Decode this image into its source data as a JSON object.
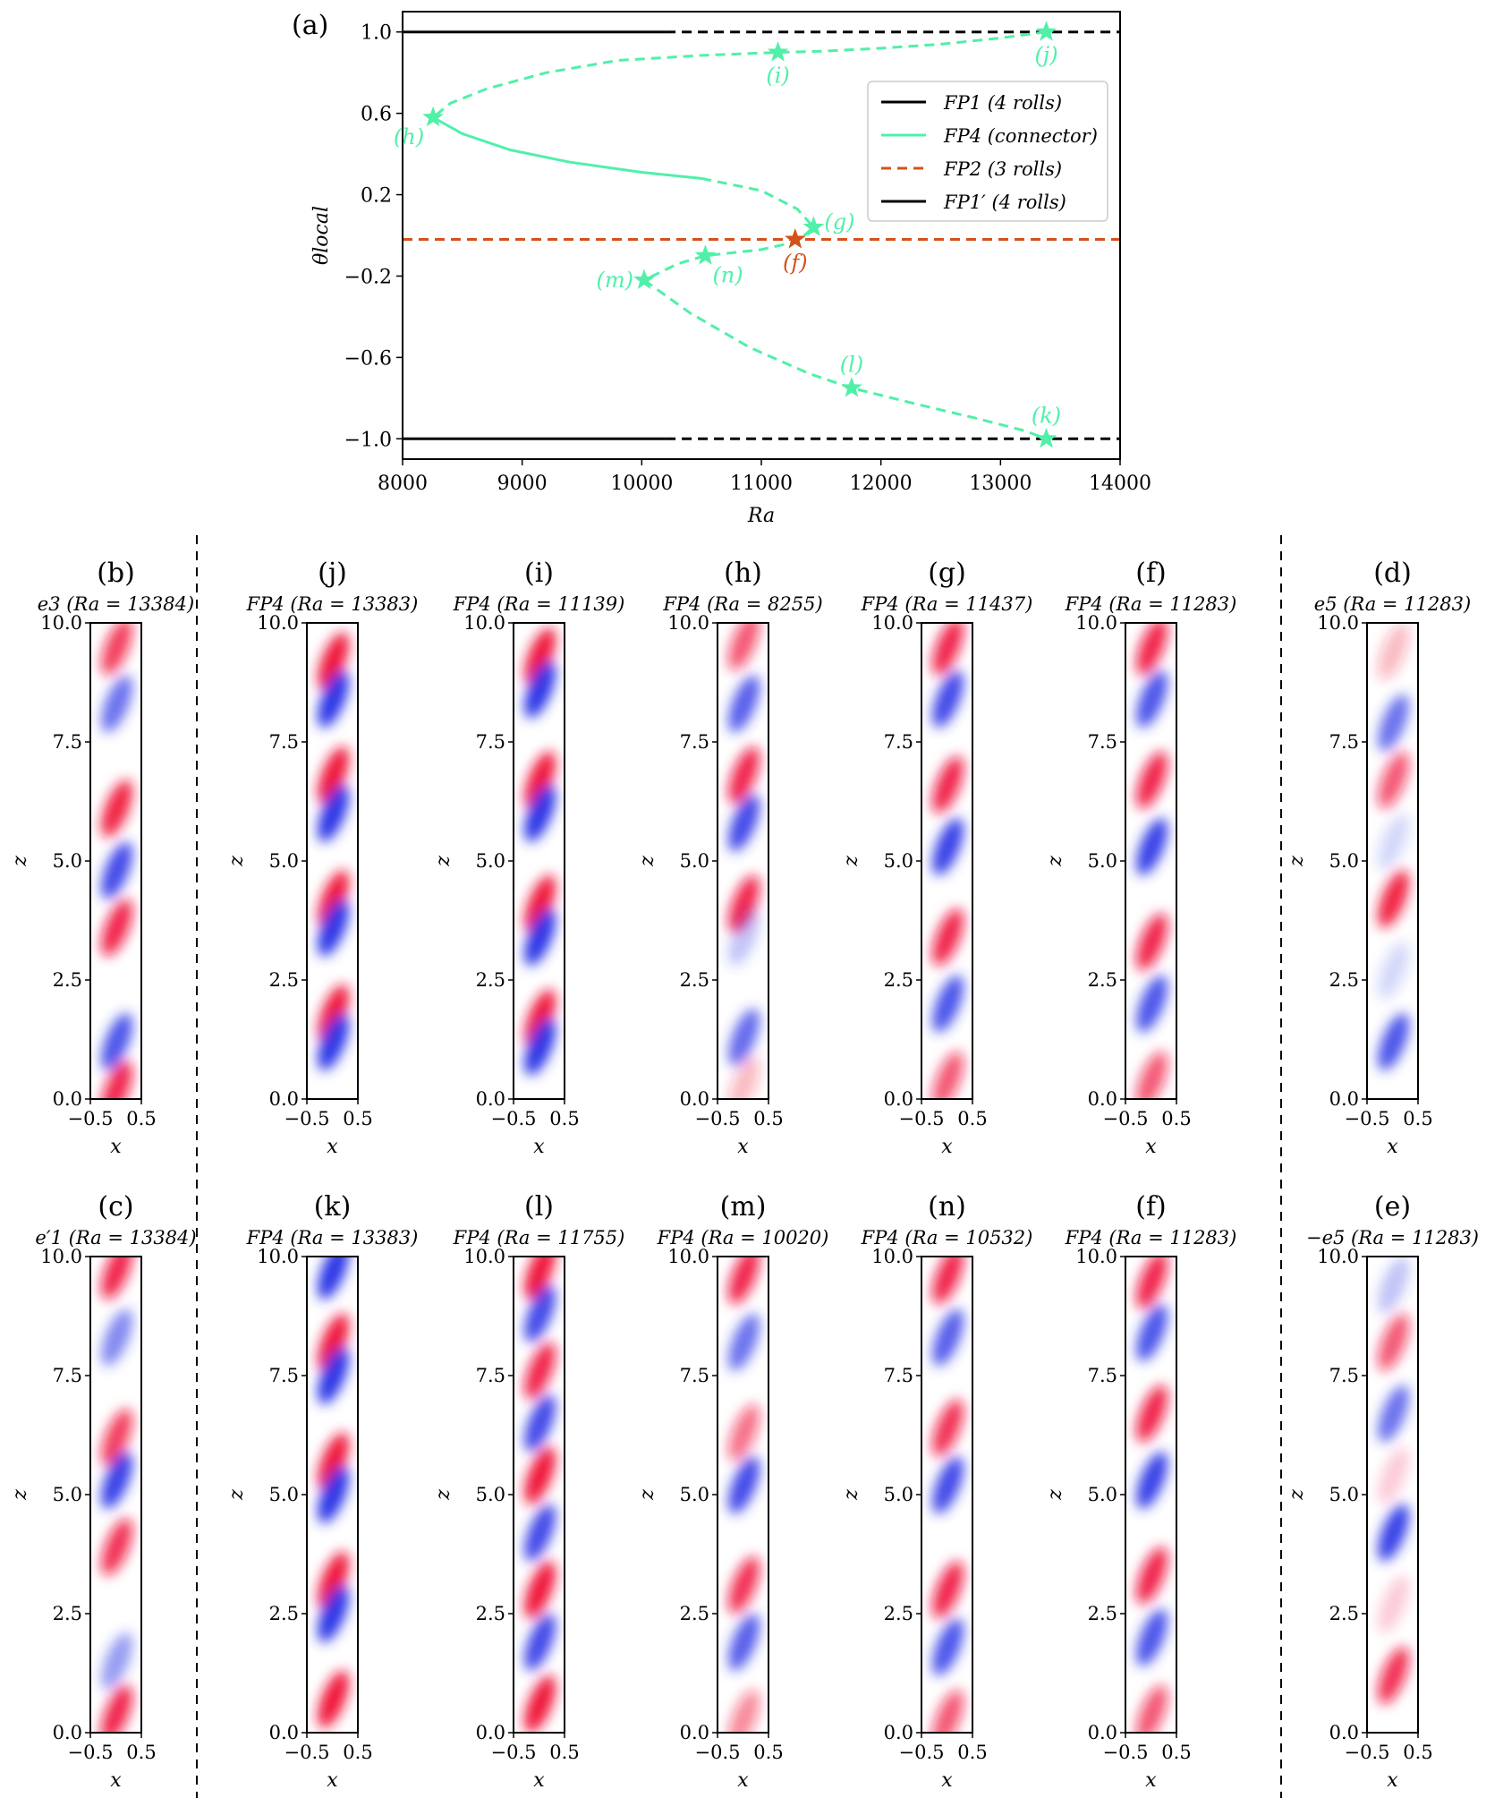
{
  "chart_data": [
    {
      "type": "line",
      "panel": "(a)",
      "xlabel": "Ra",
      "ylabel": "θlocal",
      "xlim": [
        8000,
        14000
      ],
      "ylim": [
        -1.1,
        1.1
      ],
      "xticks": [
        "8000",
        "9000",
        "10000",
        "11000",
        "12000",
        "13000",
        "14000"
      ],
      "xtick_values": [
        8000,
        9000,
        10000,
        11000,
        12000,
        13000,
        14000
      ],
      "yticks": [
        "1.0",
        "0.6",
        "0.2",
        "−0.2",
        "−0.6",
        "−1.0"
      ],
      "ytick_values": [
        1.0,
        0.6,
        0.2,
        -0.2,
        -0.6,
        -1.0
      ],
      "legend_position": "top-right",
      "legend": [
        {
          "label": "FP1 (4 rolls)",
          "color": "#000000",
          "style": "solid"
        },
        {
          "label": "FP4 (connector)",
          "color": "#50f0a8",
          "style": "solid"
        },
        {
          "label": "FP2 (3 rolls)",
          "color": "#d5511a",
          "style": "dashed"
        },
        {
          "label": "FP1′ (4 rolls)",
          "color": "#000000",
          "style": "solid"
        }
      ],
      "series": [
        {
          "name": "FP1 stable",
          "color": "#000000",
          "style": "solid",
          "x": [
            8000,
            10200
          ],
          "y": [
            1.0,
            1.0
          ]
        },
        {
          "name": "FP1 unstable",
          "color": "#000000",
          "style": "dashed",
          "x": [
            10200,
            14000
          ],
          "y": [
            1.0,
            1.0
          ]
        },
        {
          "name": "FP1' stable",
          "color": "#000000",
          "style": "solid",
          "x": [
            8000,
            10200
          ],
          "y": [
            -1.0,
            -1.0
          ]
        },
        {
          "name": "FP1' unstable",
          "color": "#000000",
          "style": "dashed",
          "x": [
            10200,
            14000
          ],
          "y": [
            -1.0,
            -1.0
          ]
        },
        {
          "name": "FP2",
          "color": "#d5511a",
          "style": "dashed",
          "x": [
            8000,
            14000
          ],
          "y": [
            -0.02,
            -0.02
          ]
        },
        {
          "name": "FP4 upper branch",
          "color": "#50f0a8",
          "style": "dashed",
          "x": [
            13383,
            13000,
            12500,
            12000,
            11500,
            11139,
            10500,
            9800,
            9200,
            8700,
            8400,
            8255
          ],
          "y": [
            1.0,
            0.97,
            0.94,
            0.92,
            0.905,
            0.9,
            0.885,
            0.86,
            0.8,
            0.72,
            0.65,
            0.58
          ]
        },
        {
          "name": "FP4 stable segment",
          "color": "#50f0a8",
          "style": "solid",
          "x": [
            8255,
            8500,
            8900,
            9400,
            10000,
            10500
          ],
          "y": [
            0.58,
            0.5,
            0.42,
            0.36,
            0.31,
            0.28
          ]
        },
        {
          "name": "FP4 middle branch",
          "color": "#50f0a8",
          "style": "dashed",
          "x": [
            10500,
            11000,
            11300,
            11437,
            11300,
            11000,
            10532,
            10300,
            10020
          ],
          "y": [
            0.28,
            0.22,
            0.13,
            0.04,
            -0.03,
            -0.07,
            -0.1,
            -0.14,
            -0.22
          ]
        },
        {
          "name": "FP4 lower branch",
          "color": "#50f0a8",
          "style": "dashed",
          "x": [
            10020,
            10400,
            10900,
            11400,
            11755,
            12300,
            12800,
            13200,
            13383
          ],
          "y": [
            -0.22,
            -0.38,
            -0.55,
            -0.68,
            -0.75,
            -0.83,
            -0.9,
            -0.96,
            -1.0
          ]
        }
      ],
      "points": [
        {
          "label": "(f)",
          "x": 11283,
          "y": -0.02,
          "color": "#d5511a",
          "label_pos": "below"
        },
        {
          "label": "(g)",
          "x": 11437,
          "y": 0.04,
          "color": "#50f0a8",
          "label_pos": "right"
        },
        {
          "label": "(h)",
          "x": 8255,
          "y": 0.58,
          "color": "#50f0a8",
          "label_pos": "below-left"
        },
        {
          "label": "(i)",
          "x": 11139,
          "y": 0.9,
          "color": "#50f0a8",
          "label_pos": "below"
        },
        {
          "label": "(j)",
          "x": 13383,
          "y": 1.0,
          "color": "#50f0a8",
          "label_pos": "below"
        },
        {
          "label": "(k)",
          "x": 13383,
          "y": -1.0,
          "color": "#50f0a8",
          "label_pos": "above"
        },
        {
          "label": "(l)",
          "x": 11755,
          "y": -0.75,
          "color": "#50f0a8",
          "label_pos": "above"
        },
        {
          "label": "(m)",
          "x": 10020,
          "y": -0.22,
          "color": "#50f0a8",
          "label_pos": "left"
        },
        {
          "label": "(n)",
          "x": 10532,
          "y": -0.1,
          "color": "#50f0a8",
          "label_pos": "below-right"
        }
      ]
    },
    {
      "type": "heatmap",
      "xlabel": "x",
      "ylabel": "z",
      "xlim": [
        -0.5,
        0.5
      ],
      "ylim": [
        0.0,
        10.0
      ],
      "xticks": [
        "−0.5",
        "0.5"
      ],
      "xtick_values": [
        -0.5,
        0.5
      ],
      "yticks": [
        "0.0",
        "2.5",
        "5.0",
        "7.5",
        "10.0"
      ],
      "ytick_values": [
        0.0,
        2.5,
        5.0,
        7.5,
        10.0
      ],
      "colormap": [
        "#2b35e6",
        "#ffffff",
        "#f0133a"
      ],
      "panels": [
        {
          "label": "(b)",
          "title": "e3 (Ra = 13384)",
          "row": 0,
          "col": 0,
          "blobs": [
            [
              9.5,
              0.8
            ],
            [
              8.3,
              -0.7
            ],
            [
              6.1,
              0.95
            ],
            [
              4.8,
              -0.9
            ],
            [
              3.6,
              0.9
            ],
            [
              1.2,
              -0.85
            ],
            [
              0.2,
              0.9
            ]
          ]
        },
        {
          "label": "(j)",
          "title": "FP4 (Ra = 13383)",
          "row": 0,
          "col": 1,
          "blobs": [
            [
              9.2,
              1
            ],
            [
              8.4,
              -1
            ],
            [
              6.8,
              1
            ],
            [
              6.0,
              -1
            ],
            [
              4.2,
              1
            ],
            [
              3.6,
              -1
            ],
            [
              1.8,
              1
            ],
            [
              1.2,
              -1
            ]
          ]
        },
        {
          "label": "(i)",
          "title": "FP4 (Ra = 11139)",
          "row": 0,
          "col": 2,
          "blobs": [
            [
              9.3,
              1
            ],
            [
              8.6,
              -1
            ],
            [
              6.7,
              1
            ],
            [
              6.0,
              -1
            ],
            [
              4.1,
              1
            ],
            [
              3.4,
              -1
            ],
            [
              1.7,
              1
            ],
            [
              1.1,
              -1
            ]
          ]
        },
        {
          "label": "(h)",
          "title": "FP4 (Ra = 8255)",
          "row": 0,
          "col": 3,
          "blobs": [
            [
              9.6,
              0.7
            ],
            [
              8.3,
              -0.8
            ],
            [
              6.8,
              0.9
            ],
            [
              5.8,
              -0.9
            ],
            [
              4.1,
              0.9
            ],
            [
              3.4,
              -0.3
            ],
            [
              1.3,
              -0.75
            ],
            [
              0.3,
              0.3
            ]
          ]
        },
        {
          "label": "(g)",
          "title": "FP4 (Ra = 11437)",
          "row": 0,
          "col": 4,
          "blobs": [
            [
              9.5,
              0.9
            ],
            [
              8.4,
              -0.9
            ],
            [
              6.6,
              0.9
            ],
            [
              5.3,
              -0.95
            ],
            [
              3.4,
              0.9
            ],
            [
              2.0,
              -0.85
            ],
            [
              0.4,
              0.7
            ]
          ]
        },
        {
          "label": "(f)",
          "title": "FP4 (Ra = 11283)",
          "row": 0,
          "col": 5,
          "blobs": [
            [
              9.5,
              0.9
            ],
            [
              8.4,
              -0.85
            ],
            [
              6.7,
              0.9
            ],
            [
              5.3,
              -0.95
            ],
            [
              3.3,
              0.9
            ],
            [
              2.0,
              -0.85
            ],
            [
              0.4,
              0.7
            ]
          ]
        },
        {
          "label": "(d)",
          "title": "e5 (Ra = 11283)",
          "row": 0,
          "col": 6,
          "blobs": [
            [
              9.4,
              0.3
            ],
            [
              7.9,
              -0.7
            ],
            [
              6.7,
              0.7
            ],
            [
              5.4,
              -0.2
            ],
            [
              4.2,
              0.95
            ],
            [
              2.7,
              -0.2
            ],
            [
              1.2,
              -0.85
            ]
          ]
        },
        {
          "label": "(c)",
          "title": "e′1 (Ra = 13384)",
          "row": 1,
          "col": 0,
          "blobs": [
            [
              9.7,
              0.9
            ],
            [
              8.3,
              -0.6
            ],
            [
              6.2,
              0.8
            ],
            [
              5.3,
              -0.95
            ],
            [
              3.9,
              0.85
            ],
            [
              1.5,
              -0.5
            ],
            [
              0.4,
              0.9
            ]
          ]
        },
        {
          "label": "(k)",
          "title": "FP4 (Ra = 13383)",
          "row": 1,
          "col": 1,
          "blobs": [
            [
              9.7,
              -1
            ],
            [
              8.2,
              1
            ],
            [
              7.5,
              -1
            ],
            [
              5.7,
              1
            ],
            [
              5.0,
              -1
            ],
            [
              3.2,
              1
            ],
            [
              2.5,
              -1
            ],
            [
              0.7,
              1
            ]
          ]
        },
        {
          "label": "(l)",
          "title": "FP4 (Ra = 11755)",
          "row": 1,
          "col": 2,
          "blobs": [
            [
              9.7,
              1
            ],
            [
              8.8,
              -0.9
            ],
            [
              7.6,
              0.9
            ],
            [
              6.5,
              -0.9
            ],
            [
              5.4,
              1
            ],
            [
              4.2,
              -0.9
            ],
            [
              3.0,
              1
            ],
            [
              1.9,
              -0.9
            ],
            [
              0.6,
              1
            ]
          ]
        },
        {
          "label": "(m)",
          "title": "FP4 (Ra = 10020)",
          "row": 1,
          "col": 3,
          "blobs": [
            [
              9.6,
              0.9
            ],
            [
              8.2,
              -0.7
            ],
            [
              6.3,
              0.6
            ],
            [
              5.2,
              -0.9
            ],
            [
              3.1,
              0.85
            ],
            [
              1.9,
              -0.8
            ],
            [
              0.3,
              0.5
            ]
          ]
        },
        {
          "label": "(n)",
          "title": "FP4 (Ra = 10532)",
          "row": 1,
          "col": 4,
          "blobs": [
            [
              9.6,
              0.9
            ],
            [
              8.3,
              -0.8
            ],
            [
              6.4,
              0.85
            ],
            [
              5.2,
              -0.9
            ],
            [
              3.0,
              0.9
            ],
            [
              1.8,
              -0.85
            ],
            [
              0.3,
              0.7
            ]
          ]
        },
        {
          "label": "(f)",
          "title": "FP4 (Ra = 11283)",
          "row": 1,
          "col": 5,
          "blobs": [
            [
              9.5,
              0.9
            ],
            [
              8.4,
              -0.85
            ],
            [
              6.7,
              0.9
            ],
            [
              5.3,
              -0.95
            ],
            [
              3.3,
              0.9
            ],
            [
              2.0,
              -0.85
            ],
            [
              0.4,
              0.7
            ]
          ]
        },
        {
          "label": "(e)",
          "title": "−e5 (Ra = 11283)",
          "row": 1,
          "col": 6,
          "blobs": [
            [
              9.4,
              -0.3
            ],
            [
              8.2,
              0.7
            ],
            [
              6.7,
              -0.7
            ],
            [
              5.4,
              0.2
            ],
            [
              4.2,
              -0.95
            ],
            [
              2.7,
              0.2
            ],
            [
              1.2,
              0.85
            ]
          ]
        }
      ]
    }
  ]
}
